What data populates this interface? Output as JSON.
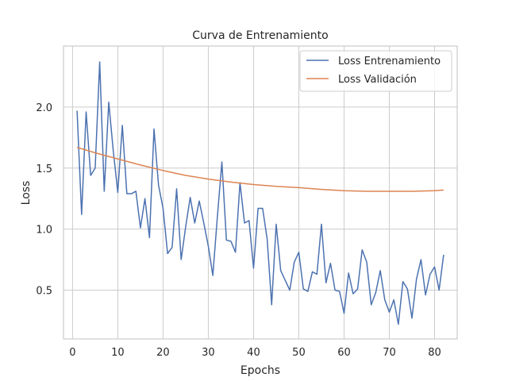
{
  "chart_data": {
    "type": "line",
    "title": "Curva de Entrenamiento",
    "xlabel": "Epochs",
    "ylabel": "Loss",
    "xlim": [
      -2.0,
      85.0
    ],
    "ylim": [
      0.1,
      2.5
    ],
    "xticks": [
      0,
      10,
      20,
      30,
      40,
      50,
      60,
      70,
      80
    ],
    "yticks": [
      0.5,
      1.0,
      1.5,
      2.0
    ],
    "ytick_labels": [
      "0.5",
      "1.0",
      "1.5",
      "2.0"
    ],
    "grid": true,
    "legend_position": "top-right",
    "series": [
      {
        "name": "Loss Entrenamiento",
        "color": "#4c72b0",
        "x": [
          1,
          2,
          3,
          4,
          5,
          6,
          7,
          8,
          9,
          10,
          11,
          12,
          13,
          14,
          15,
          16,
          17,
          18,
          19,
          20,
          21,
          22,
          23,
          24,
          25,
          26,
          27,
          28,
          29,
          30,
          31,
          32,
          33,
          34,
          35,
          36,
          37,
          38,
          39,
          40,
          41,
          42,
          43,
          44,
          45,
          46,
          47,
          48,
          49,
          50,
          51,
          52,
          53,
          54,
          55,
          56,
          57,
          58,
          59,
          60,
          61,
          62,
          63,
          64,
          65,
          66,
          67,
          68,
          69,
          70,
          71,
          72,
          73,
          74,
          75,
          76,
          77,
          78,
          79,
          80,
          81,
          82
        ],
        "y": [
          1.97,
          1.12,
          1.96,
          1.44,
          1.5,
          2.37,
          1.31,
          2.04,
          1.64,
          1.3,
          1.85,
          1.29,
          1.29,
          1.31,
          1.01,
          1.25,
          0.93,
          1.82,
          1.36,
          1.17,
          0.8,
          0.85,
          1.33,
          0.75,
          1.02,
          1.26,
          1.05,
          1.23,
          1.05,
          0.86,
          0.62,
          1.1,
          1.55,
          0.91,
          0.9,
          0.81,
          1.38,
          1.05,
          1.07,
          0.68,
          1.17,
          1.17,
          0.92,
          0.38,
          1.04,
          0.66,
          0.58,
          0.5,
          0.73,
          0.81,
          0.51,
          0.49,
          0.65,
          0.63,
          1.04,
          0.56,
          0.72,
          0.5,
          0.49,
          0.31,
          0.64,
          0.47,
          0.51,
          0.83,
          0.73,
          0.38,
          0.48,
          0.66,
          0.42,
          0.32,
          0.42,
          0.22,
          0.57,
          0.51,
          0.27,
          0.59,
          0.75,
          0.46,
          0.63,
          0.69,
          0.5,
          0.79
        ]
      },
      {
        "name": "Loss Validación",
        "color": "#dd8452",
        "x": [
          1,
          5,
          10,
          15,
          20,
          25,
          30,
          35,
          40,
          45,
          50,
          55,
          60,
          65,
          70,
          72,
          75,
          80,
          82
        ],
        "y": [
          1.67,
          1.625,
          1.575,
          1.525,
          1.48,
          1.44,
          1.41,
          1.385,
          1.365,
          1.35,
          1.34,
          1.325,
          1.315,
          1.31,
          1.31,
          1.31,
          1.31,
          1.315,
          1.32
        ]
      }
    ]
  }
}
